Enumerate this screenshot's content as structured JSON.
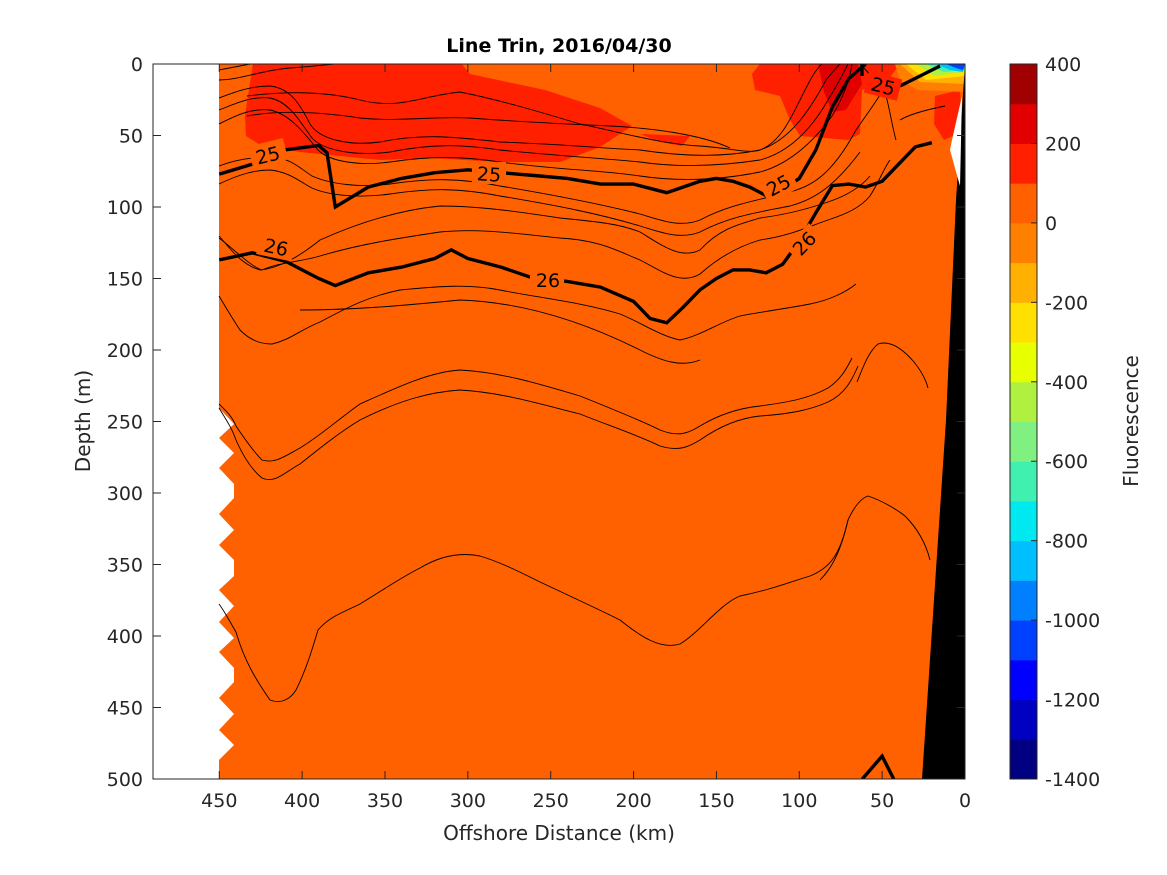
{
  "chart_data": {
    "type": "contour",
    "title": "Line Trin, 2016/04/30",
    "xlabel": "Offshore Distance (km)",
    "ylabel": "Depth (m)",
    "xlim": [
      490,
      0
    ],
    "ylim": [
      0,
      500
    ],
    "x_reversed": true,
    "y_reversed": true,
    "x_ticks": [
      450,
      400,
      350,
      300,
      250,
      200,
      150,
      100,
      50,
      0
    ],
    "y_ticks": [
      0,
      50,
      100,
      150,
      200,
      250,
      300,
      350,
      400,
      450,
      500
    ],
    "grid": false,
    "colorbar": {
      "label": "Fluorescence",
      "ticks": [
        400,
        200,
        0,
        -200,
        -400,
        -600,
        -800,
        -1000,
        -1200,
        -1400
      ],
      "colors": [
        "#000080",
        "#0000C0",
        "#0000FF",
        "#0040FF",
        "#0080FF",
        "#00BFFF",
        "#00E8F0",
        "#40F0B0",
        "#80F080",
        "#B0F040",
        "#E8FF00",
        "#FFE000",
        "#FFB000",
        "#FF8000",
        "#FF6000",
        "#FF2000",
        "#E00000",
        "#A00000"
      ]
    },
    "fill": {
      "background_color": "#FF6000",
      "high_patches_color": "#FF2000",
      "high_patches_range": [
        100,
        200
      ],
      "background_range": [
        0,
        100
      ]
    },
    "density_contours": {
      "labeled_levels": [
        "25",
        "26"
      ],
      "level_25": {
        "offshore_km": [
          450,
          430,
          410,
          390,
          385,
          380,
          360,
          340,
          320,
          300,
          280,
          260,
          240,
          220,
          200,
          180,
          170,
          160,
          150,
          140,
          130,
          120,
          110,
          100,
          90,
          80,
          70,
          60
        ],
        "depth_m": [
          77,
          70,
          60,
          57,
          62,
          100,
          86,
          80,
          76,
          74,
          76,
          78,
          80,
          84,
          84,
          90,
          86,
          82,
          80,
          82,
          86,
          92,
          88,
          80,
          60,
          30,
          10,
          0
        ]
      },
      "level_26": {
        "offshore_km": [
          450,
          430,
          410,
          390,
          380,
          360,
          340,
          320,
          310,
          300,
          280,
          260,
          240,
          220,
          200,
          190,
          180,
          170,
          160,
          150,
          140,
          130,
          120,
          110,
          100,
          90,
          80,
          70,
          60,
          50,
          40,
          30,
          20
        ],
        "depth_m": [
          137,
          132,
          138,
          150,
          155,
          146,
          142,
          136,
          130,
          136,
          142,
          150,
          152,
          156,
          166,
          178,
          181,
          170,
          158,
          150,
          144,
          144,
          146,
          140,
          124,
          104,
          85,
          84,
          86,
          82,
          70,
          58,
          55
        ]
      },
      "deep_closed_level": {
        "offshore_km": [
          62,
          50,
          43
        ],
        "depth_m": [
          500,
          484,
          500
        ]
      }
    }
  }
}
